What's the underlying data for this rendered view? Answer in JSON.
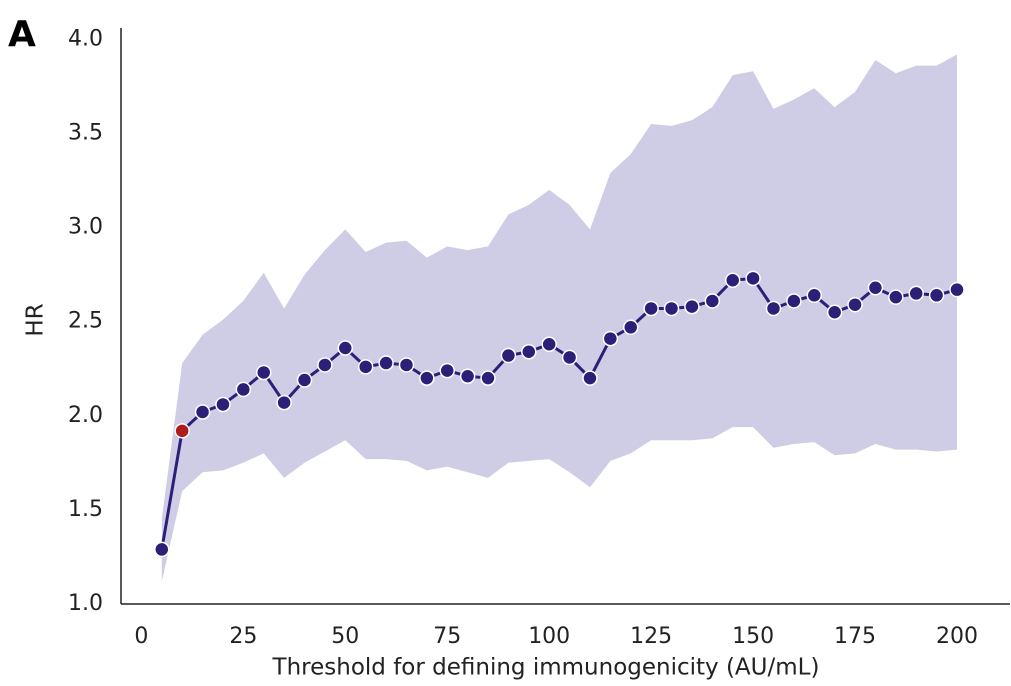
{
  "chart_data": {
    "type": "line",
    "panel_label": "A",
    "x_label": "Threshold for defining immunogenicity (AU/mL)",
    "y_label": "HR",
    "x": [
      5,
      10,
      15,
      20,
      25,
      30,
      35,
      40,
      45,
      50,
      55,
      60,
      65,
      70,
      75,
      80,
      85,
      90,
      95,
      100,
      105,
      110,
      115,
      120,
      125,
      130,
      135,
      140,
      145,
      150,
      155,
      160,
      165,
      170,
      175,
      180,
      185,
      190,
      195,
      200
    ],
    "series": [
      {
        "color": "#2b1f78",
        "values": [
          1.29,
          1.92,
          2.02,
          2.06,
          2.14,
          2.23,
          2.07,
          2.19,
          2.27,
          2.36,
          2.26,
          2.28,
          2.27,
          2.2,
          2.24,
          2.21,
          2.2,
          2.32,
          2.34,
          2.38,
          2.31,
          2.2,
          2.41,
          2.47,
          2.57,
          2.57,
          2.58,
          2.61,
          2.72,
          2.73,
          2.57,
          2.61,
          2.64,
          2.55,
          2.59,
          2.68,
          2.63,
          2.65,
          2.64,
          2.67
        ],
        "point_colors": [
          "#2b1f78",
          "#b01c1c",
          "#2b1f78",
          "#2b1f78",
          "#2b1f78",
          "#2b1f78",
          "#2b1f78",
          "#2b1f78",
          "#2b1f78",
          "#2b1f78",
          "#2b1f78",
          "#2b1f78",
          "#2b1f78",
          "#2b1f78",
          "#2b1f78",
          "#2b1f78",
          "#2b1f78",
          "#2b1f78",
          "#2b1f78",
          "#2b1f78",
          "#2b1f78",
          "#2b1f78",
          "#2b1f78",
          "#2b1f78",
          "#2b1f78",
          "#2b1f78",
          "#2b1f78",
          "#2b1f78",
          "#2b1f78",
          "#2b1f78",
          "#2b1f78",
          "#2b1f78",
          "#2b1f78",
          "#2b1f78",
          "#2b1f78",
          "#2b1f78",
          "#2b1f78",
          "#2b1f78",
          "#2b1f78",
          "#2b1f78"
        ]
      }
    ],
    "band": {
      "color": "#cfcde6",
      "upper": [
        1.45,
        2.28,
        2.43,
        2.51,
        2.61,
        2.76,
        2.57,
        2.75,
        2.88,
        2.99,
        2.87,
        2.92,
        2.93,
        2.84,
        2.9,
        2.88,
        2.9,
        3.07,
        3.12,
        3.2,
        3.12,
        2.99,
        3.29,
        3.39,
        3.55,
        3.54,
        3.57,
        3.64,
        3.81,
        3.83,
        3.63,
        3.68,
        3.74,
        3.64,
        3.72,
        3.89,
        3.82,
        3.86,
        3.86,
        3.92
      ],
      "lower": [
        1.12,
        1.6,
        1.7,
        1.71,
        1.75,
        1.8,
        1.67,
        1.75,
        1.81,
        1.87,
        1.77,
        1.77,
        1.76,
        1.71,
        1.73,
        1.7,
        1.67,
        1.75,
        1.76,
        1.77,
        1.7,
        1.62,
        1.76,
        1.8,
        1.87,
        1.87,
        1.87,
        1.88,
        1.94,
        1.94,
        1.83,
        1.85,
        1.86,
        1.79,
        1.8,
        1.85,
        1.82,
        1.82,
        1.81,
        1.82
      ]
    },
    "xlim": [
      -5,
      213
    ],
    "ylim": [
      1.0,
      4.06
    ],
    "xticks": [
      0,
      25,
      50,
      75,
      100,
      125,
      150,
      175,
      200
    ],
    "yticks": [
      {
        "value": 1.0,
        "label": "1.0"
      },
      1.5,
      {
        "value": 2.0,
        "label": "2.0"
      },
      2.5,
      {
        "value": 3.0,
        "label": "3.0"
      },
      3.5,
      {
        "value": 4.0,
        "label": "4.0"
      }
    ],
    "grid": false
  }
}
